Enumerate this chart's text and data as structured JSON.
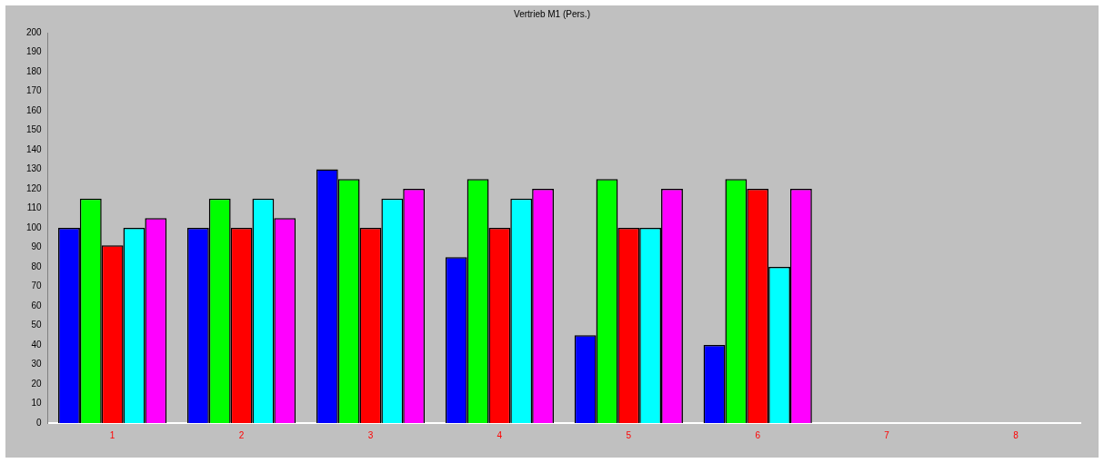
{
  "chart_data": {
    "type": "bar",
    "title": "Vertrieb M1 (Pers.)",
    "categories": [
      "1",
      "2",
      "3",
      "4",
      "5",
      "6",
      "7",
      "8"
    ],
    "series": [
      {
        "color": "#0000ff",
        "values": [
          100,
          100,
          130,
          85,
          45,
          40,
          0,
          0
        ]
      },
      {
        "color": "#00ff00",
        "values": [
          115,
          115,
          125,
          125,
          125,
          125,
          0,
          0
        ]
      },
      {
        "color": "#ff0000",
        "values": [
          91,
          100,
          100,
          100,
          100,
          120,
          0,
          0
        ]
      },
      {
        "color": "#00ffff",
        "values": [
          100,
          115,
          115,
          115,
          100,
          80,
          0,
          0
        ]
      },
      {
        "color": "#ff00ff",
        "values": [
          105,
          105,
          120,
          120,
          120,
          120,
          0,
          0
        ]
      }
    ],
    "ylim": [
      0,
      200
    ],
    "yticks": [
      0,
      10,
      20,
      30,
      40,
      50,
      60,
      70,
      80,
      90,
      100,
      110,
      120,
      130,
      140,
      150,
      160,
      170,
      180,
      190,
      200
    ],
    "grid": false,
    "legend": false
  }
}
